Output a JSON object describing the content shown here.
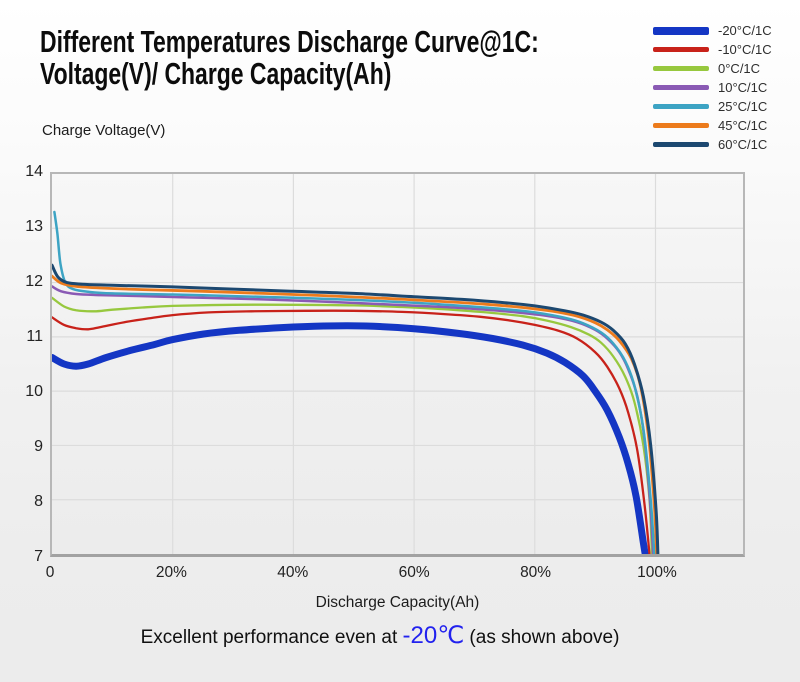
{
  "header": {
    "title_line1": "Different Temperatures Discharge Curve@1C:",
    "title_line2": "Voltage(V)/ Charge Capacity(Ah)"
  },
  "caption": {
    "prefix": "Excellent performance even at ",
    "highlight": "-20℃",
    "suffix": " (as shown above)",
    "highlight_color": "#2222ee"
  },
  "legend": {
    "items": [
      {
        "label": "-20°C/1C",
        "color": "#1436c4",
        "thickness": 8
      },
      {
        "label": "-10°C/1C",
        "color": "#c8221a",
        "thickness": 5
      },
      {
        "label": "0°C/1C",
        "color": "#97c83e",
        "thickness": 5
      },
      {
        "label": "10°C/1C",
        "color": "#8a5ab4",
        "thickness": 5
      },
      {
        "label": "25°C/1C",
        "color": "#3da4c4",
        "thickness": 5
      },
      {
        "label": "45°C/1C",
        "color": "#ec7b1c",
        "thickness": 5
      },
      {
        "label": "60°C/1C",
        "color": "#1c4870",
        "thickness": 5
      }
    ]
  },
  "chart_data": {
    "type": "line",
    "title": "Different Temperatures Discharge Curve@1C: Voltage(V)/ Charge Capacity(Ah)",
    "ylabel": "Charge Voltage(V)",
    "xlabel": "Discharge Capacity(Ah)",
    "x_range": [
      0,
      114.5
    ],
    "y_range": [
      7,
      14
    ],
    "grid": true,
    "grid_color": "#dcdcdc",
    "legend_position": "top-right",
    "x_ticks": [
      {
        "value": 0,
        "label": "0"
      },
      {
        "value": 20,
        "label": "20%"
      },
      {
        "value": 40,
        "label": "40%"
      },
      {
        "value": 60,
        "label": "60%"
      },
      {
        "value": 80,
        "label": "80%"
      },
      {
        "value": 100,
        "label": "100%"
      }
    ],
    "y_ticks": [
      {
        "value": 14,
        "label": "14"
      },
      {
        "value": 13,
        "label": "13"
      },
      {
        "value": 12,
        "label": "12"
      },
      {
        "value": 11,
        "label": "11"
      },
      {
        "value": 10,
        "label": "10"
      },
      {
        "value": 9,
        "label": "9"
      },
      {
        "value": 8,
        "label": "8"
      },
      {
        "value": 7,
        "label": "7"
      }
    ],
    "series": [
      {
        "name": "-20°C/1C",
        "color": "#1436c4",
        "line_width": 7,
        "points": [
          [
            0,
            10.62
          ],
          [
            2,
            10.5
          ],
          [
            4,
            10.46
          ],
          [
            6,
            10.5
          ],
          [
            9,
            10.62
          ],
          [
            13,
            10.75
          ],
          [
            17,
            10.86
          ],
          [
            20,
            10.95
          ],
          [
            25,
            11.05
          ],
          [
            31,
            11.12
          ],
          [
            38,
            11.17
          ],
          [
            45,
            11.2
          ],
          [
            52,
            11.2
          ],
          [
            60,
            11.15
          ],
          [
            67,
            11.07
          ],
          [
            73,
            10.97
          ],
          [
            78,
            10.85
          ],
          [
            82,
            10.7
          ],
          [
            85,
            10.53
          ],
          [
            88,
            10.28
          ],
          [
            90,
            10.0
          ],
          [
            92,
            9.65
          ],
          [
            94,
            9.15
          ],
          [
            95.5,
            8.65
          ],
          [
            96.8,
            8.05
          ],
          [
            98,
            7.2
          ],
          [
            98.3,
            7.0
          ]
        ]
      },
      {
        "name": "-10°C/1C",
        "color": "#c8221a",
        "line_width": 2.3,
        "points": [
          [
            0,
            11.36
          ],
          [
            2,
            11.22
          ],
          [
            4,
            11.16
          ],
          [
            6,
            11.14
          ],
          [
            8,
            11.18
          ],
          [
            12,
            11.27
          ],
          [
            16,
            11.34
          ],
          [
            20,
            11.4
          ],
          [
            26,
            11.45
          ],
          [
            33,
            11.47
          ],
          [
            42,
            11.48
          ],
          [
            50,
            11.48
          ],
          [
            58,
            11.46
          ],
          [
            65,
            11.42
          ],
          [
            71,
            11.37
          ],
          [
            76,
            11.3
          ],
          [
            80,
            11.22
          ],
          [
            84,
            11.11
          ],
          [
            87,
            10.97
          ],
          [
            90,
            10.72
          ],
          [
            92,
            10.45
          ],
          [
            94,
            10.05
          ],
          [
            95.5,
            9.6
          ],
          [
            97,
            8.9
          ],
          [
            98.2,
            7.9
          ],
          [
            99,
            7.0
          ]
        ]
      },
      {
        "name": "0°C/1C",
        "color": "#97c83e",
        "line_width": 2.3,
        "points": [
          [
            0,
            11.72
          ],
          [
            2,
            11.56
          ],
          [
            4,
            11.49
          ],
          [
            7,
            11.47
          ],
          [
            10,
            11.5
          ],
          [
            15,
            11.54
          ],
          [
            20,
            11.57
          ],
          [
            30,
            11.59
          ],
          [
            40,
            11.59
          ],
          [
            50,
            11.58
          ],
          [
            58,
            11.55
          ],
          [
            65,
            11.51
          ],
          [
            72,
            11.45
          ],
          [
            78,
            11.38
          ],
          [
            82,
            11.3
          ],
          [
            86,
            11.18
          ],
          [
            89,
            11.04
          ],
          [
            91,
            10.89
          ],
          [
            93,
            10.64
          ],
          [
            95,
            10.26
          ],
          [
            96.5,
            9.8
          ],
          [
            98,
            9.0
          ],
          [
            99,
            8.0
          ],
          [
            99.4,
            7.0
          ]
        ]
      },
      {
        "name": "10°C/1C",
        "color": "#8a5ab4",
        "line_width": 2.5,
        "points": [
          [
            0,
            11.93
          ],
          [
            1.5,
            11.84
          ],
          [
            4,
            11.79
          ],
          [
            8,
            11.77
          ],
          [
            15,
            11.75
          ],
          [
            25,
            11.72
          ],
          [
            35,
            11.69
          ],
          [
            45,
            11.65
          ],
          [
            55,
            11.6
          ],
          [
            65,
            11.55
          ],
          [
            72,
            11.5
          ],
          [
            78,
            11.44
          ],
          [
            83,
            11.37
          ],
          [
            87,
            11.27
          ],
          [
            90,
            11.13
          ],
          [
            92,
            10.97
          ],
          [
            94,
            10.72
          ],
          [
            95.5,
            10.4
          ],
          [
            97,
            9.9
          ],
          [
            98.2,
            9.1
          ],
          [
            99.2,
            7.8
          ],
          [
            99.6,
            7.0
          ]
        ]
      },
      {
        "name": "25°C/1C",
        "color": "#3da4c4",
        "line_width": 2.5,
        "points": [
          [
            0.4,
            13.3
          ],
          [
            0.9,
            12.9
          ],
          [
            1.4,
            12.35
          ],
          [
            2.2,
            12.0
          ],
          [
            3.5,
            11.88
          ],
          [
            6,
            11.83
          ],
          [
            10,
            11.8
          ],
          [
            20,
            11.78
          ],
          [
            30,
            11.75
          ],
          [
            40,
            11.72
          ],
          [
            50,
            11.68
          ],
          [
            60,
            11.63
          ],
          [
            68,
            11.57
          ],
          [
            75,
            11.51
          ],
          [
            80,
            11.45
          ],
          [
            85,
            11.35
          ],
          [
            88,
            11.25
          ],
          [
            91,
            11.08
          ],
          [
            93,
            10.88
          ],
          [
            95,
            10.55
          ],
          [
            96.5,
            10.1
          ],
          [
            98,
            9.3
          ],
          [
            99.2,
            8.0
          ],
          [
            99.8,
            7.0
          ]
        ]
      },
      {
        "name": "45°C/1C",
        "color": "#ec7b1c",
        "line_width": 2.8,
        "points": [
          [
            0,
            12.12
          ],
          [
            1.5,
            11.99
          ],
          [
            4,
            11.93
          ],
          [
            8,
            11.9
          ],
          [
            15,
            11.87
          ],
          [
            25,
            11.84
          ],
          [
            35,
            11.8
          ],
          [
            45,
            11.76
          ],
          [
            55,
            11.71
          ],
          [
            65,
            11.65
          ],
          [
            72,
            11.6
          ],
          [
            78,
            11.54
          ],
          [
            83,
            11.47
          ],
          [
            87,
            11.38
          ],
          [
            90,
            11.26
          ],
          [
            92,
            11.13
          ],
          [
            94,
            10.93
          ],
          [
            96,
            10.6
          ],
          [
            97.5,
            10.1
          ],
          [
            98.8,
            9.2
          ],
          [
            99.8,
            7.9
          ],
          [
            100.2,
            7.0
          ]
        ]
      },
      {
        "name": "60°C/1C",
        "color": "#1c4870",
        "line_width": 3,
        "points": [
          [
            0,
            12.32
          ],
          [
            1,
            12.1
          ],
          [
            2.5,
            12.0
          ],
          [
            5,
            11.97
          ],
          [
            10,
            11.95
          ],
          [
            20,
            11.92
          ],
          [
            30,
            11.88
          ],
          [
            40,
            11.84
          ],
          [
            50,
            11.8
          ],
          [
            60,
            11.74
          ],
          [
            68,
            11.69
          ],
          [
            75,
            11.63
          ],
          [
            80,
            11.57
          ],
          [
            85,
            11.48
          ],
          [
            88,
            11.4
          ],
          [
            91,
            11.27
          ],
          [
            93,
            11.12
          ],
          [
            95,
            10.87
          ],
          [
            96.5,
            10.5
          ],
          [
            98,
            9.9
          ],
          [
            99.2,
            9.0
          ],
          [
            100.1,
            7.8
          ],
          [
            100.4,
            7.0
          ]
        ]
      }
    ]
  }
}
